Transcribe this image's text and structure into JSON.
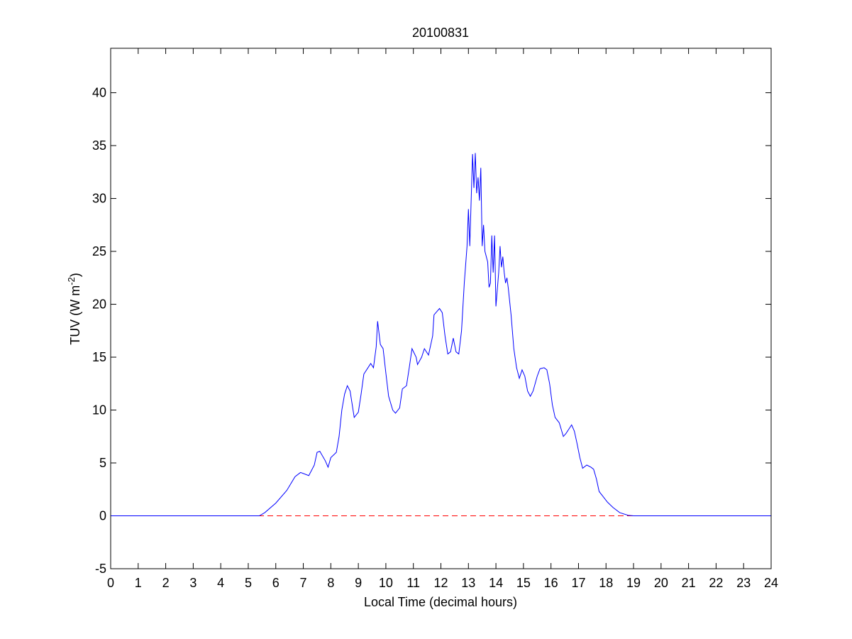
{
  "chart_data": {
    "type": "line",
    "title": "20100831",
    "xlabel": "Local Time (decimal hours)",
    "ylabel": {
      "text": "TUV (W m",
      "superscript": "-2",
      "suffix": ")"
    },
    "xlim": [
      0,
      24
    ],
    "ylim": [
      -5,
      44.2
    ],
    "xticks": [
      0,
      1,
      2,
      3,
      4,
      5,
      6,
      7,
      8,
      9,
      10,
      11,
      12,
      13,
      14,
      15,
      16,
      17,
      18,
      19,
      20,
      21,
      22,
      23,
      24
    ],
    "yticks": [
      -5,
      0,
      5,
      10,
      15,
      20,
      25,
      30,
      35,
      40
    ],
    "hline": {
      "value": 0,
      "color": "#ff0000",
      "style": "dashed"
    },
    "series": [
      {
        "color": "#0000ff",
        "x": [
          0,
          5.4,
          5.6,
          6.0,
          6.4,
          6.7,
          6.9,
          7.1,
          7.2,
          7.4,
          7.5,
          7.6,
          7.8,
          7.9,
          8.0,
          8.2,
          8.3,
          8.4,
          8.5,
          8.6,
          8.7,
          8.85,
          9.0,
          9.1,
          9.2,
          9.35,
          9.45,
          9.55,
          9.65,
          9.7,
          9.8,
          9.9,
          10.0,
          10.1,
          10.25,
          10.35,
          10.5,
          10.6,
          10.75,
          10.85,
          10.95,
          11.1,
          11.15,
          11.3,
          11.4,
          11.55,
          11.7,
          11.75,
          11.85,
          11.95,
          12.05,
          12.15,
          12.25,
          12.35,
          12.45,
          12.55,
          12.65,
          12.75,
          12.85,
          12.95,
          13.0,
          13.05,
          13.15,
          13.2,
          13.25,
          13.3,
          13.35,
          13.4,
          13.45,
          13.5,
          13.55,
          13.6,
          13.7,
          13.75,
          13.8,
          13.85,
          13.9,
          13.95,
          14.0,
          14.1,
          14.15,
          14.2,
          14.25,
          14.3,
          14.35,
          14.4,
          14.45,
          14.55,
          14.65,
          14.75,
          14.85,
          14.95,
          15.05,
          15.15,
          15.25,
          15.35,
          15.5,
          15.6,
          15.75,
          15.85,
          15.95,
          16.05,
          16.15,
          16.3,
          16.45,
          16.55,
          16.65,
          16.75,
          16.85,
          16.95,
          17.05,
          17.15,
          17.3,
          17.45,
          17.55,
          17.65,
          17.75,
          17.9,
          18.05,
          18.25,
          18.5,
          18.8,
          19.0,
          24
        ],
        "values": [
          0,
          0,
          0.3,
          1.2,
          2.4,
          3.7,
          4.1,
          3.9,
          3.8,
          4.8,
          6.0,
          6.1,
          5.2,
          4.6,
          5.5,
          6.0,
          7.5,
          10.0,
          11.5,
          12.3,
          11.8,
          9.3,
          9.8,
          11.5,
          13.4,
          14.0,
          14.4,
          14.0,
          16.0,
          18.4,
          16.2,
          15.8,
          13.5,
          11.3,
          10.0,
          9.7,
          10.2,
          12.0,
          12.3,
          14.0,
          15.8,
          15.0,
          14.3,
          15.0,
          15.8,
          15.2,
          17.0,
          19.0,
          19.3,
          19.6,
          19.2,
          17.0,
          15.3,
          15.5,
          16.8,
          15.5,
          15.3,
          17.5,
          22.0,
          25.5,
          29.0,
          25.5,
          34.2,
          31.0,
          34.3,
          30.5,
          32.0,
          29.8,
          32.9,
          25.5,
          27.5,
          25.0,
          24.0,
          21.6,
          22.0,
          26.5,
          23.0,
          26.5,
          19.8,
          23.0,
          25.5,
          23.5,
          24.5,
          23.0,
          22.0,
          22.5,
          21.5,
          19.0,
          15.8,
          14.0,
          13.0,
          13.8,
          13.2,
          11.8,
          11.3,
          11.8,
          13.2,
          13.9,
          14.0,
          13.8,
          12.5,
          10.5,
          9.3,
          8.8,
          7.5,
          7.8,
          8.2,
          8.6,
          8.0,
          6.8,
          5.5,
          4.5,
          4.8,
          4.6,
          4.4,
          3.5,
          2.3,
          1.8,
          1.3,
          0.8,
          0.3,
          0.05,
          0,
          0
        ]
      }
    ]
  }
}
